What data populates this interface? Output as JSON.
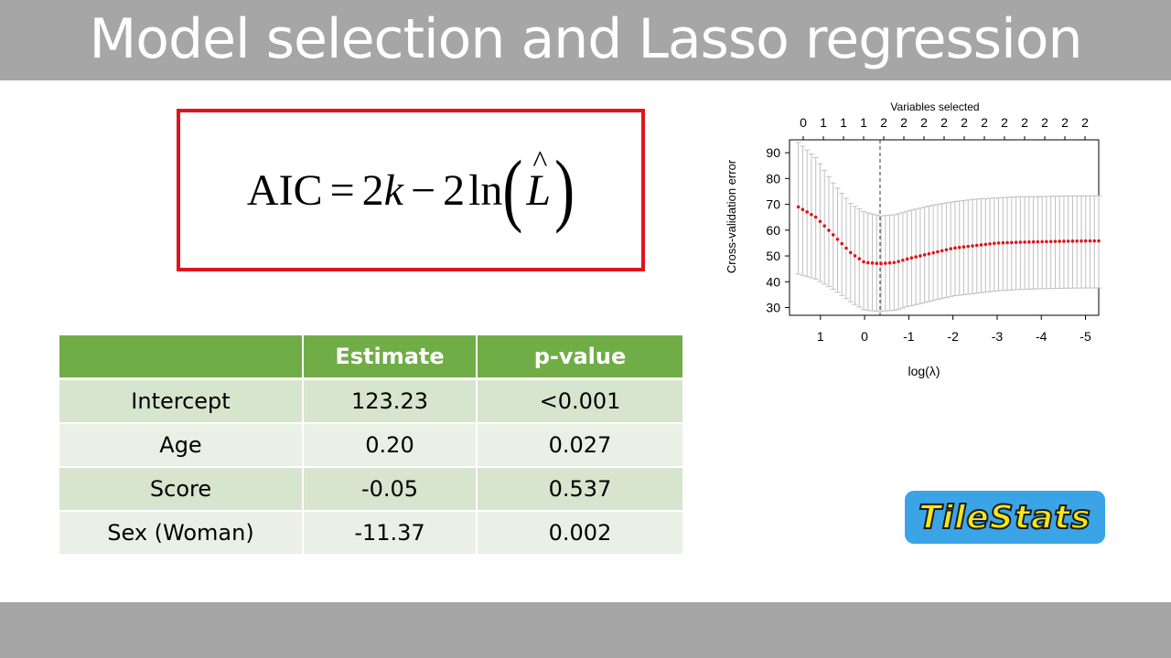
{
  "slide": {
    "title": "Model selection and Lasso regression"
  },
  "formula": {
    "lhs": "AIC",
    "eq": "=",
    "two_a": "2",
    "k": "k",
    "minus": "−",
    "two_b": "2",
    "ln": "ln",
    "L": "L",
    "hat": "^"
  },
  "table": {
    "headers": [
      "",
      "Estimate",
      "p-value"
    ],
    "rows": [
      [
        "Intercept",
        "123.23",
        "<0.001"
      ],
      [
        "Age",
        "0.20",
        "0.027"
      ],
      [
        "Score",
        "-0.05",
        "0.537"
      ],
      [
        "Sex (Woman)",
        "-11.37",
        "0.002"
      ]
    ]
  },
  "chart_data": {
    "type": "scatter",
    "top_axis_title": "Variables selected",
    "ylabel": "Cross-validation error",
    "xlabel": "log(λ)",
    "x_reversed": true,
    "xlim": [
      1.7,
      -5.3
    ],
    "ylim": [
      27,
      95
    ],
    "x_ticks": [
      1,
      0,
      -1,
      -2,
      -3,
      -4,
      -5
    ],
    "x_tick_labels": [
      "1",
      "0",
      "-1",
      "-2",
      "-3",
      "-4",
      "-5"
    ],
    "y_ticks": [
      30,
      40,
      50,
      60,
      70,
      80,
      90
    ],
    "top_ticks": [
      "0",
      "1",
      "1",
      "1",
      "2",
      "2",
      "2",
      "2",
      "2",
      "2",
      "2",
      "2",
      "2",
      "2",
      "2"
    ],
    "top_tick_positions": [
      1.3,
      0.81,
      0.32,
      -0.17,
      -0.66,
      -1.15,
      -1.64,
      -2.13,
      -2.62,
      -3.11,
      -3.6,
      -4.09,
      -4.58,
      -5.07,
      -5.2
    ],
    "lambda_min_line": -0.35,
    "series": [
      {
        "x": [
          1.5,
          1.1,
          0.7,
          0.3,
          0.0,
          -0.35,
          -0.7,
          -1.0,
          -1.5,
          -2.0,
          -2.5,
          -3.0,
          -3.5,
          -4.0,
          -4.5,
          -5.0,
          -5.3
        ],
        "y": [
          69,
          65,
          58,
          51,
          47.5,
          47,
          47.5,
          49,
          51,
          53,
          54,
          55,
          55.3,
          55.5,
          55.7,
          55.8,
          55.8
        ],
        "upper": [
          94,
          88,
          78,
          70,
          67,
          65.5,
          66,
          67.5,
          69.5,
          71,
          72,
          72.5,
          73,
          73,
          73.2,
          73.3,
          73.3
        ],
        "lower": [
          43,
          41,
          37,
          32,
          29,
          28.5,
          29,
          30.5,
          32.5,
          34.5,
          35.5,
          36.5,
          37,
          37.3,
          37.5,
          37.6,
          37.6
        ],
        "color": "#e0141e",
        "bar_color": "#bfbfbf"
      }
    ]
  },
  "logo": {
    "text": "TileStats",
    "bg_color": "#3aa4e6",
    "text_color": "#f5e61a"
  },
  "colors": {
    "title_bar": "#a6a6a6",
    "formula_border": "#e0141e",
    "table_header": "#70ad47",
    "row_odd": "#d7e4ce",
    "row_even": "#ebf0e7"
  }
}
